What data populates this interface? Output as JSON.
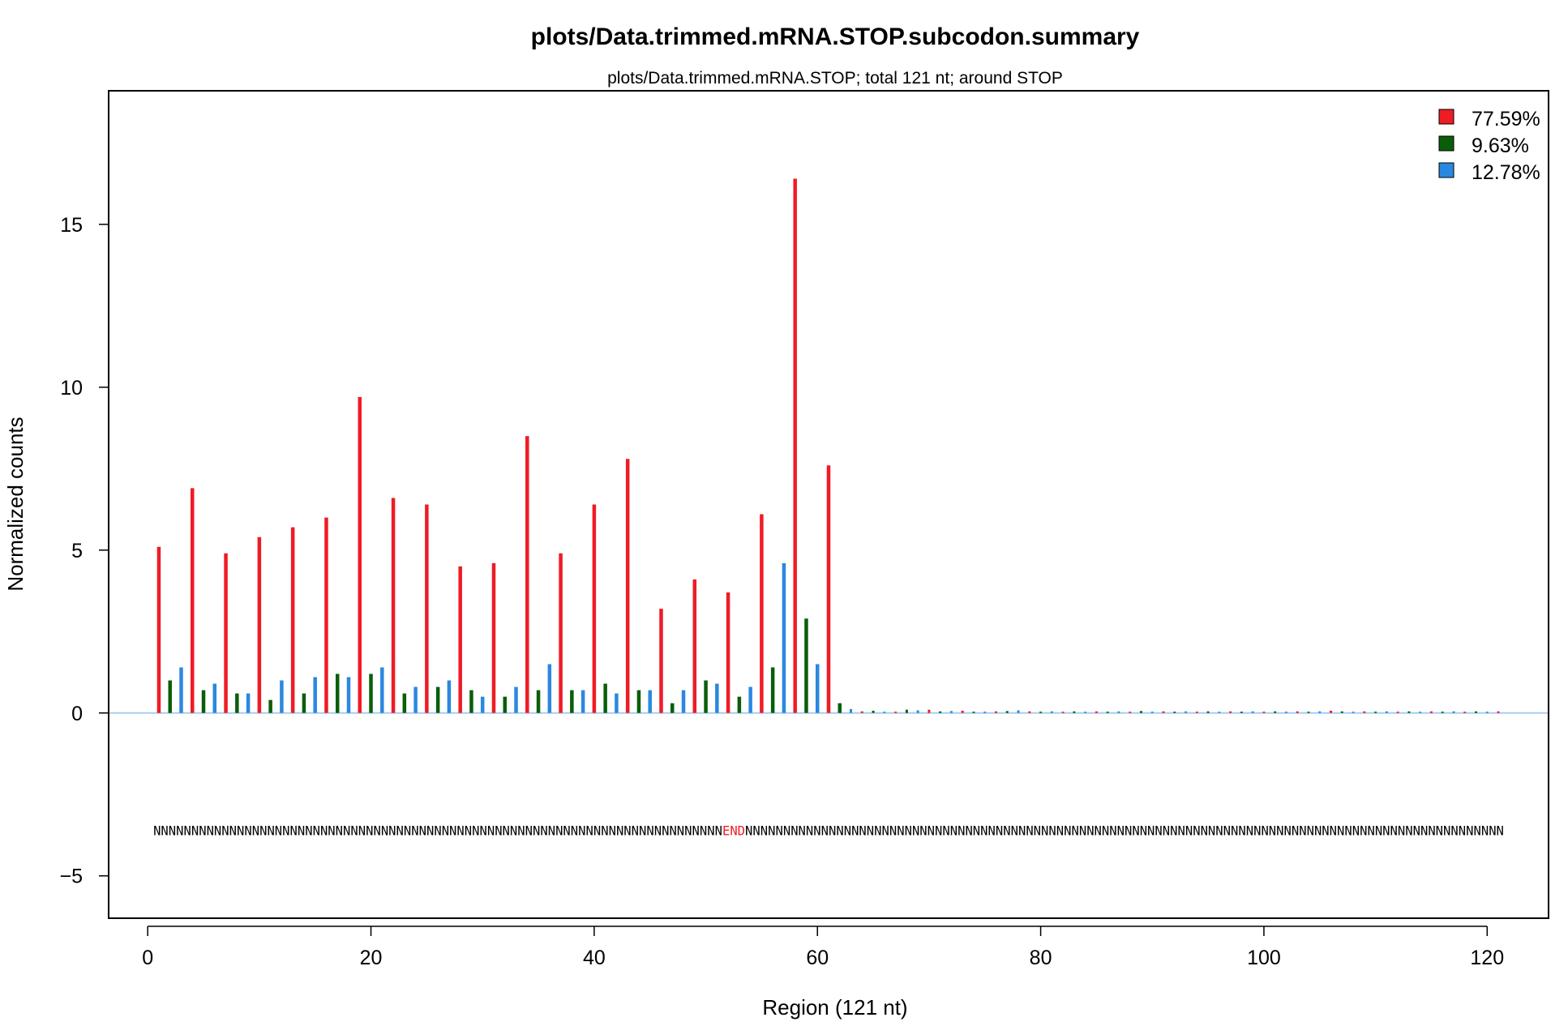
{
  "chart_data": {
    "type": "bar",
    "title": "plots/Data.trimmed.mRNA.STOP.subcodon.summary",
    "subtitle": "plots/Data.trimmed.mRNA.STOP; total 121 nt; around STOP",
    "xlabel": "Region (121 nt)",
    "ylabel": "Normalized counts",
    "xlim": [
      -3.5,
      125.5
    ],
    "ylim": [
      -6.3,
      19.1
    ],
    "xticks": [
      0,
      20,
      40,
      60,
      80,
      100,
      120
    ],
    "yticks": [
      -5,
      0,
      5,
      10,
      15
    ],
    "legend": {
      "position": "top-right",
      "items": [
        {
          "label": "77.59%",
          "color": "#ee1c25"
        },
        {
          "label": "9.63%",
          "color": "#0a5e0a"
        },
        {
          "label": "12.78%",
          "color": "#2b88e0"
        }
      ]
    },
    "frame_colors": [
      "#ee1c25",
      "#0a5e0a",
      "#2b88e0"
    ],
    "baseline_color": "#a6cdf0",
    "x": [
      1,
      2,
      3,
      4,
      5,
      6,
      7,
      8,
      9,
      10,
      11,
      12,
      13,
      14,
      15,
      16,
      17,
      18,
      19,
      20,
      21,
      22,
      23,
      24,
      25,
      26,
      27,
      28,
      29,
      30,
      31,
      32,
      33,
      34,
      35,
      36,
      37,
      38,
      39,
      40,
      41,
      42,
      43,
      44,
      45,
      46,
      47,
      48,
      49,
      50,
      51,
      52,
      53,
      54,
      55,
      56,
      57,
      58,
      59,
      60,
      61,
      62,
      63,
      64,
      65,
      66,
      67,
      68,
      69,
      70,
      71,
      72,
      73,
      74,
      75,
      76,
      77,
      78,
      79,
      80,
      81,
      82,
      83,
      84,
      85,
      86,
      87,
      88,
      89,
      90,
      91,
      92,
      93,
      94,
      95,
      96,
      97,
      98,
      99,
      100,
      101,
      102,
      103,
      104,
      105,
      106,
      107,
      108,
      109,
      110,
      111,
      112,
      113,
      114,
      115,
      116,
      117,
      118,
      119,
      120,
      121
    ],
    "values": [
      5.1,
      1.0,
      1.4,
      6.9,
      0.7,
      0.9,
      4.9,
      0.6,
      0.6,
      5.4,
      0.4,
      1.0,
      5.7,
      0.6,
      1.1,
      6.0,
      1.2,
      1.1,
      9.7,
      1.2,
      1.4,
      6.6,
      0.6,
      0.8,
      6.4,
      0.8,
      1.0,
      4.5,
      0.7,
      0.5,
      4.6,
      0.5,
      0.8,
      8.5,
      0.7,
      1.5,
      4.9,
      0.7,
      0.7,
      6.4,
      0.9,
      0.6,
      7.8,
      0.7,
      0.7,
      3.2,
      0.3,
      0.7,
      4.1,
      1.0,
      0.9,
      3.7,
      0.5,
      0.8,
      6.1,
      1.4,
      4.6,
      16.4,
      2.9,
      1.5,
      7.6,
      0.3,
      0.12,
      0.05,
      0.07,
      0.04,
      0.04,
      0.1,
      0.08,
      0.1,
      0.05,
      0.06,
      0.07,
      0.04,
      0.04,
      0.05,
      0.06,
      0.08,
      0.05,
      0.04,
      0.05,
      0.04,
      0.05,
      0.04,
      0.05,
      0.04,
      0.05,
      0.04,
      0.06,
      0.04,
      0.05,
      0.04,
      0.05,
      0.04,
      0.05,
      0.04,
      0.05,
      0.04,
      0.05,
      0.04,
      0.05,
      0.04,
      0.05,
      0.04,
      0.05,
      0.07,
      0.05,
      0.04,
      0.05,
      0.04,
      0.05,
      0.04,
      0.05,
      0.04,
      0.05,
      0.04,
      0.05,
      0.04,
      0.05,
      0.04,
      0.05
    ],
    "sequence": {
      "y": -3.6,
      "left": "NNNNNNNNNNNNNNNNNNNNNNNNNNNNNNNNNNNNNNNNNNNNNNNNNNNNNNNNNNNNNNNNNNNNNNNNNNN",
      "stop": "END",
      "stop_color": "#ee1c25",
      "right": "NNNNNNNNNNNNNNNNNNNNNNNNNNNNNNNNNNNNNNNNNNNNNNNNNNNNNNNNNNNNNNNNNNNNNNNNNNNNNNNNNNNNNNNNNNNNNNNNNNNN"
    }
  }
}
